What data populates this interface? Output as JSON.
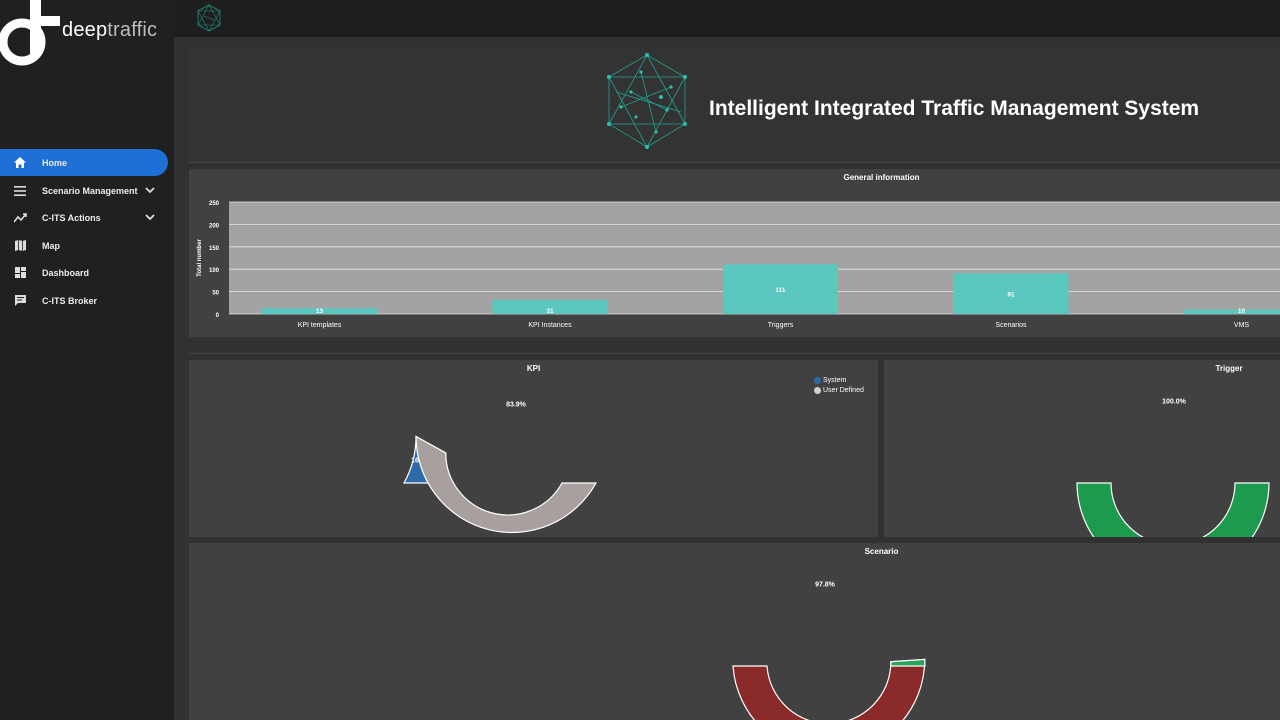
{
  "app": {
    "logo_strong": "deep",
    "logo_light": "traffic",
    "title": "Intelligent Integrated Traffic Management System"
  },
  "sidebar": {
    "items": [
      {
        "label": "Home",
        "icon": "home-icon",
        "active": true
      },
      {
        "label": "Scenario Management",
        "icon": "menu-icon",
        "expandable": true
      },
      {
        "label": "C-ITS Actions",
        "icon": "trend-icon",
        "expandable": true
      },
      {
        "label": "Map",
        "icon": "map-icon"
      },
      {
        "label": "Dashboard",
        "icon": "dashboard-icon"
      },
      {
        "label": "C-ITS Broker",
        "icon": "chat-icon"
      }
    ]
  },
  "colors": {
    "accent": "#1e6fd6",
    "bar": "#5bc8c0",
    "system": "#2d6aa8",
    "user_defined": "#a8a09f",
    "trigger": "#1c9a4e",
    "scenario_main": "#8b2a2a",
    "scenario_small": "#2aa35a"
  },
  "general": {
    "title": "General information",
    "chart_data": {
      "type": "bar",
      "ylabel": "Total number",
      "categories": [
        "KPI templates",
        "KPI Instances",
        "Triggers",
        "Scenarios",
        "VMS"
      ],
      "values": [
        13,
        31,
        111,
        91,
        10
      ],
      "ylim": [
        0,
        250
      ],
      "yticks": [
        "250",
        "200",
        "150",
        "100",
        "50",
        "0"
      ]
    }
  },
  "kpi": {
    "title": "KPI",
    "chart_data": {
      "type": "pie",
      "slices": [
        {
          "name": "System",
          "value": 16.1,
          "label": "16.1%"
        },
        {
          "name": "User Defined",
          "value": 83.9,
          "label": "83.9%"
        }
      ]
    }
  },
  "trigger": {
    "title": "Trigger",
    "chart_data": {
      "type": "pie",
      "slices": [
        {
          "value": 100.0,
          "label": "100.0%"
        }
      ]
    }
  },
  "scenario": {
    "title": "Scenario",
    "chart_data": {
      "type": "pie",
      "slices": [
        {
          "value": 97.8,
          "label": "97.8%"
        },
        {
          "value": 2.2,
          "label": ""
        }
      ]
    }
  }
}
